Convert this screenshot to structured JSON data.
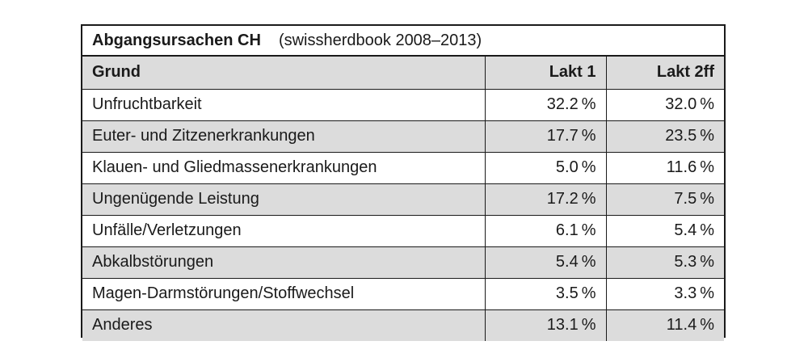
{
  "title": {
    "main": "Abgangsursachen CH",
    "sub": "(swissherdbook 2008–2013)"
  },
  "header": {
    "grund": "Grund",
    "lakt1": "Lakt 1",
    "lakt2ff": "Lakt 2ff"
  },
  "rows": [
    {
      "grund": "Unfruchtbarkeit",
      "lakt1": "32.2 %",
      "lakt2ff": "32.0 %"
    },
    {
      "grund": "Euter- und Zitzenerkrankungen",
      "lakt1": "17.7 %",
      "lakt2ff": "23.5 %"
    },
    {
      "grund": "Klauen- und Gliedmassenerkrankungen",
      "lakt1": "5.0 %",
      "lakt2ff": "11.6 %"
    },
    {
      "grund": "Ungenügende Leistung",
      "lakt1": "17.2 %",
      "lakt2ff": "7.5 %"
    },
    {
      "grund": "Unfälle/Verletzungen",
      "lakt1": "6.1 %",
      "lakt2ff": "5.4 %"
    },
    {
      "grund": "Abkalbstörungen",
      "lakt1": "5.4 %",
      "lakt2ff": "5.3 %"
    },
    {
      "grund": "Magen-Darmstörungen/Stoffwechsel",
      "lakt1": "3.5 %",
      "lakt2ff": "3.3 %"
    },
    {
      "grund": "Anderes",
      "lakt1": "13.1 %",
      "lakt2ff": "11.4 %"
    }
  ],
  "colors": {
    "shade": "#dcdcdc",
    "border": "#1a1a1a"
  }
}
